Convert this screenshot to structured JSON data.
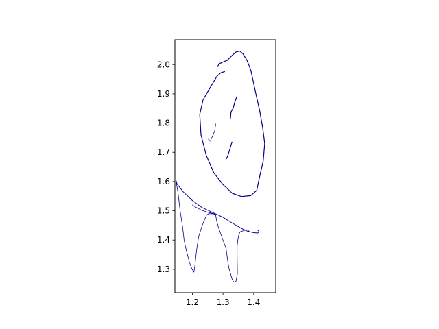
{
  "chart_data": {
    "type": "line",
    "title": "",
    "xlabel": "",
    "ylabel": "",
    "xlim": [
      1.143,
      1.472
    ],
    "ylim": [
      1.22,
      2.085
    ],
    "x_ticks": [
      1.2,
      1.3,
      1.4
    ],
    "x_tick_labels": [
      "1.2",
      "1.3",
      "1.4"
    ],
    "y_ticks": [
      1.3,
      1.4,
      1.5,
      1.6,
      1.7,
      1.8,
      1.9,
      2.0
    ],
    "y_tick_labels": [
      "1.3",
      "1.4",
      "1.5",
      "1.6",
      "1.7",
      "1.8",
      "1.9",
      "2.0"
    ],
    "grid": false,
    "line_color": "#00008b",
    "strokes": [
      {
        "width": 1.2,
        "points": [
          [
            1.283,
            1.993
          ],
          [
            1.286,
            2.002
          ],
          [
            1.298,
            2.008
          ],
          [
            1.314,
            2.015
          ],
          [
            1.328,
            2.03
          ],
          [
            1.342,
            2.043
          ],
          [
            1.355,
            2.046
          ],
          [
            1.365,
            2.037
          ],
          [
            1.378,
            2.015
          ],
          [
            1.391,
            1.98
          ],
          [
            1.405,
            1.91
          ],
          [
            1.42,
            1.84
          ],
          [
            1.43,
            1.78
          ],
          [
            1.436,
            1.73
          ],
          [
            1.431,
            1.67
          ],
          [
            1.42,
            1.62
          ],
          [
            1.41,
            1.57
          ],
          [
            1.39,
            1.552
          ],
          [
            1.36,
            1.549
          ],
          [
            1.33,
            1.56
          ],
          [
            1.3,
            1.59
          ],
          [
            1.27,
            1.63
          ],
          [
            1.245,
            1.69
          ],
          [
            1.228,
            1.76
          ],
          [
            1.224,
            1.83
          ],
          [
            1.235,
            1.88
          ],
          [
            1.26,
            1.925
          ],
          [
            1.28,
            1.96
          ],
          [
            1.293,
            1.972
          ],
          [
            1.305,
            1.976
          ]
        ]
      },
      {
        "width": 1.2,
        "points": [
          [
            1.324,
            1.815
          ],
          [
            1.326,
            1.838
          ],
          [
            1.333,
            1.851
          ],
          [
            1.338,
            1.87
          ],
          [
            1.345,
            1.891
          ]
        ]
      },
      {
        "width": 0.8,
        "points": [
          [
            1.252,
            1.745
          ],
          [
            1.258,
            1.738
          ],
          [
            1.266,
            1.756
          ],
          [
            1.273,
            1.774
          ],
          [
            1.276,
            1.797
          ]
        ]
      },
      {
        "width": 1.2,
        "points": [
          [
            1.311,
            1.678
          ],
          [
            1.316,
            1.69
          ],
          [
            1.322,
            1.71
          ],
          [
            1.329,
            1.735
          ]
        ]
      },
      {
        "width": 1.0,
        "points": [
          [
            1.146,
            1.606
          ],
          [
            1.15,
            1.592
          ],
          [
            1.17,
            1.565
          ],
          [
            1.2,
            1.535
          ],
          [
            1.23,
            1.512
          ],
          [
            1.26,
            1.497
          ],
          [
            1.3,
            1.478
          ],
          [
            1.33,
            1.458
          ],
          [
            1.36,
            1.44
          ],
          [
            1.38,
            1.43
          ],
          [
            1.4,
            1.425
          ],
          [
            1.413,
            1.424
          ],
          [
            1.418,
            1.428
          ],
          [
            1.414,
            1.433
          ]
        ]
      },
      {
        "width": 0.8,
        "points": [
          [
            1.146,
            1.606
          ],
          [
            1.153,
            1.563
          ],
          [
            1.16,
            1.5
          ],
          [
            1.168,
            1.445
          ],
          [
            1.173,
            1.4
          ],
          [
            1.178,
            1.375
          ],
          [
            1.19,
            1.325
          ],
          [
            1.198,
            1.302
          ],
          [
            1.205,
            1.29
          ],
          [
            1.208,
            1.31
          ],
          [
            1.213,
            1.36
          ],
          [
            1.22,
            1.41
          ],
          [
            1.232,
            1.45
          ],
          [
            1.24,
            1.47
          ],
          [
            1.246,
            1.485
          ],
          [
            1.253,
            1.49
          ],
          [
            1.262,
            1.49
          ],
          [
            1.27,
            1.49
          ],
          [
            1.273,
            1.487
          ]
        ]
      },
      {
        "width": 0.8,
        "points": [
          [
            1.275,
            1.49
          ],
          [
            1.28,
            1.462
          ],
          [
            1.286,
            1.44
          ],
          [
            1.293,
            1.42
          ],
          [
            1.298,
            1.405
          ],
          [
            1.31,
            1.37
          ],
          [
            1.315,
            1.33
          ],
          [
            1.32,
            1.3
          ],
          [
            1.33,
            1.265
          ],
          [
            1.335,
            1.256
          ],
          [
            1.342,
            1.258
          ],
          [
            1.347,
            1.285
          ],
          [
            1.346,
            1.35
          ],
          [
            1.346,
            1.38
          ],
          [
            1.349,
            1.405
          ],
          [
            1.352,
            1.42
          ],
          [
            1.356,
            1.428
          ],
          [
            1.37,
            1.433
          ],
          [
            1.38,
            1.435
          ],
          [
            1.385,
            1.429
          ]
        ]
      },
      {
        "width": 0.8,
        "points": [
          [
            1.2,
            1.52
          ],
          [
            1.21,
            1.513
          ],
          [
            1.23,
            1.502
          ],
          [
            1.25,
            1.495
          ],
          [
            1.263,
            1.492
          ],
          [
            1.273,
            1.488
          ]
        ]
      }
    ]
  }
}
